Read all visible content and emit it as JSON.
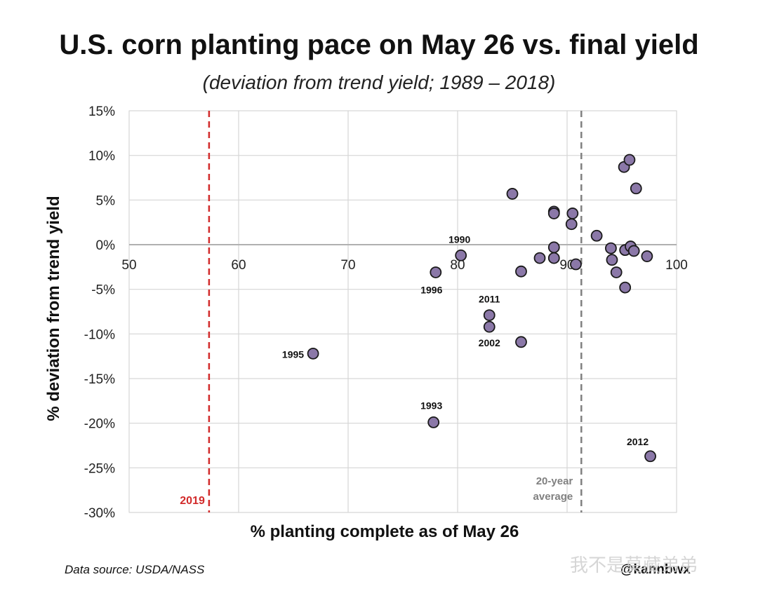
{
  "header": {
    "title": "U.S. corn planting pace on May 26 vs. final yield",
    "subtitle": "(deviation from trend yield; 1989 – 2018)"
  },
  "footer": {
    "source": "Data source: USDA/NASS",
    "handle": "@kannbwx",
    "watermark": "我不是莫藏弟弟"
  },
  "colors": {
    "point_fill": "#8b78a8",
    "point_stroke": "#1a1a1a",
    "line_2019": "#d22b2b",
    "line_avg": "#808080",
    "grid": "#d6d6d6"
  },
  "chart_data": {
    "type": "scatter",
    "title": "U.S. corn planting pace on May 26 vs. final yield",
    "subtitle": "(deviation from trend yield; 1989 – 2018)",
    "xlabel": "% planting complete as of May 26",
    "ylabel": "% deviation from trend yield",
    "xlim": [
      50,
      100
    ],
    "ylim": [
      -30,
      15
    ],
    "x_ticks": [
      "50",
      "60",
      "70",
      "80",
      "90",
      "100"
    ],
    "x_tick_values": [
      50,
      60,
      70,
      80,
      90,
      100
    ],
    "y_ticks": [
      "15%",
      "10%",
      "5%",
      "0%",
      "-5%",
      "-10%",
      "-15%",
      "-20%",
      "-25%",
      "-30%"
    ],
    "y_tick_values": [
      15,
      10,
      5,
      0,
      -5,
      -10,
      -15,
      -20,
      -25,
      -30
    ],
    "grid": true,
    "points": [
      {
        "x": 66.8,
        "y": -12.2,
        "label": "1995"
      },
      {
        "x": 77.8,
        "y": -19.9,
        "label": "1993"
      },
      {
        "x": 78.0,
        "y": -3.1,
        "label": "1996"
      },
      {
        "x": 80.3,
        "y": -1.2,
        "label": "1990"
      },
      {
        "x": 82.9,
        "y": -7.9,
        "label": "2011"
      },
      {
        "x": 82.9,
        "y": -9.2,
        "label": "2002"
      },
      {
        "x": 85.0,
        "y": 5.7,
        "label": ""
      },
      {
        "x": 85.8,
        "y": -3.0,
        "label": ""
      },
      {
        "x": 85.8,
        "y": -10.9,
        "label": ""
      },
      {
        "x": 87.5,
        "y": -1.5,
        "label": ""
      },
      {
        "x": 88.8,
        "y": 3.7,
        "label": ""
      },
      {
        "x": 88.8,
        "y": 3.5,
        "label": ""
      },
      {
        "x": 88.8,
        "y": -0.3,
        "label": ""
      },
      {
        "x": 88.8,
        "y": -1.5,
        "label": ""
      },
      {
        "x": 90.4,
        "y": 2.3,
        "label": ""
      },
      {
        "x": 90.5,
        "y": 3.5,
        "label": ""
      },
      {
        "x": 90.8,
        "y": -2.2,
        "label": ""
      },
      {
        "x": 92.7,
        "y": 1.0,
        "label": ""
      },
      {
        "x": 94.0,
        "y": -0.4,
        "label": ""
      },
      {
        "x": 94.1,
        "y": -1.7,
        "label": ""
      },
      {
        "x": 94.5,
        "y": -3.1,
        "label": ""
      },
      {
        "x": 95.2,
        "y": 8.7,
        "label": ""
      },
      {
        "x": 95.3,
        "y": -4.8,
        "label": ""
      },
      {
        "x": 95.3,
        "y": -0.6,
        "label": ""
      },
      {
        "x": 95.7,
        "y": 9.5,
        "label": ""
      },
      {
        "x": 95.8,
        "y": -0.2,
        "label": ""
      },
      {
        "x": 96.1,
        "y": -0.7,
        "label": ""
      },
      {
        "x": 96.3,
        "y": 6.3,
        "label": ""
      },
      {
        "x": 97.3,
        "y": -1.3,
        "label": ""
      },
      {
        "x": 97.6,
        "y": -23.7,
        "label": "2012"
      }
    ],
    "reference_lines": [
      {
        "x": 57.3,
        "label": "2019",
        "color": "#d22b2b"
      },
      {
        "x": 91.3,
        "label": "20-year\naverage",
        "color": "#808080"
      }
    ]
  }
}
